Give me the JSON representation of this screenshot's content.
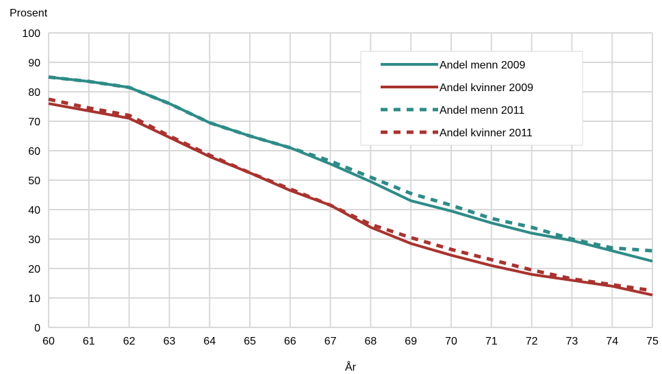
{
  "chart_data": {
    "type": "line",
    "title": "",
    "ylabel": "Prosent",
    "xlabel": "År",
    "x": [
      60,
      61,
      62,
      63,
      64,
      65,
      66,
      67,
      68,
      69,
      70,
      71,
      72,
      73,
      74,
      75
    ],
    "xlim": [
      60,
      75
    ],
    "ylim": [
      0,
      100
    ],
    "yticks": [
      0,
      10,
      20,
      30,
      40,
      50,
      60,
      70,
      80,
      90,
      100
    ],
    "grid": true,
    "legend_position": "top-right",
    "series": [
      {
        "name": "Andel menn 2009",
        "color": "#2e8b87",
        "style": "solid",
        "values": [
          85,
          83.5,
          81.5,
          76,
          69.5,
          65,
          61,
          55.5,
          49.5,
          43,
          39.5,
          35.5,
          32,
          29.5,
          26,
          22.5
        ]
      },
      {
        "name": "Andel kvinner 2009",
        "color": "#a8332f",
        "style": "solid",
        "values": [
          76,
          73.5,
          71,
          64.5,
          58,
          52.5,
          46.5,
          41.5,
          34,
          28.5,
          24.5,
          21,
          18,
          16,
          14,
          11
        ]
      },
      {
        "name": "Andel menn 2011",
        "color": "#2e8b87",
        "style": "dashed",
        "values": [
          85,
          83.5,
          81.5,
          76,
          69.5,
          65,
          61,
          56.5,
          51,
          45.5,
          41.5,
          37,
          34,
          30,
          27,
          26
        ]
      },
      {
        "name": "Andel kvinner 2011",
        "color": "#a8332f",
        "style": "dashed",
        "values": [
          77.5,
          74.5,
          72,
          65,
          58.5,
          52.5,
          47,
          41.5,
          35,
          30.5,
          26.5,
          23,
          19.5,
          16.5,
          14.5,
          12.5
        ]
      }
    ]
  }
}
